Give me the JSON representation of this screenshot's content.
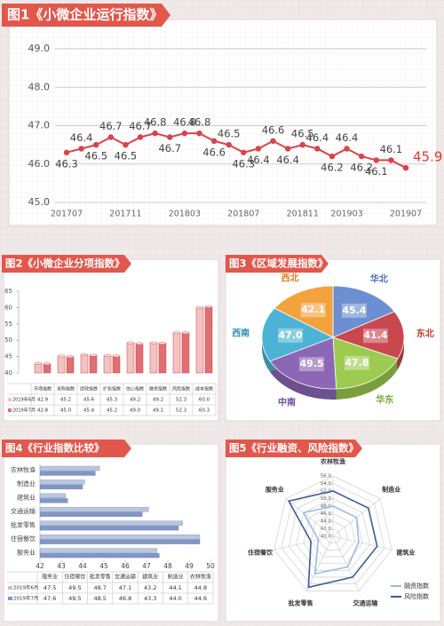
{
  "chart_data": [
    {
      "type": "line",
      "title": "图1《小微企业运行指数》",
      "categories": [
        "201707",
        null,
        null,
        null,
        "201711",
        null,
        null,
        null,
        "201803",
        null,
        null,
        null,
        "201807",
        null,
        null,
        null,
        "201811",
        null,
        null,
        "201903",
        null,
        null,
        null,
        "201907"
      ],
      "values": [
        46.3,
        46.4,
        46.5,
        46.7,
        46.5,
        46.7,
        46.8,
        46.7,
        46.8,
        46.8,
        46.6,
        46.5,
        46.3,
        46.4,
        46.6,
        46.4,
        46.5,
        46.4,
        46.2,
        46.4,
        46.2,
        46.1,
        46.1,
        45.9
      ],
      "ylim": [
        45,
        49
      ],
      "yticks": [
        {
          "value": 45,
          "label": "45.0"
        },
        {
          "value": 46,
          "label": "46.0"
        },
        {
          "value": 47,
          "label": "47.0"
        },
        {
          "value": 48,
          "label": "48.0"
        },
        {
          "value": 49,
          "label": "49.0"
        }
      ],
      "color": "#d9434a",
      "label_color": "#444444",
      "last_label_color": "#e23a2e",
      "grid": true
    },
    {
      "type": "bar",
      "title": "图2《小微企业分项指数》",
      "categories": [
        "市场指数",
        "采购指数",
        "绩效指数",
        "扩张指数",
        "信心指数",
        "融资指数",
        "风险指数",
        "成本指数"
      ],
      "series": [
        {
          "name": "2019年6月",
          "color": "#f3c2c2",
          "values": [
            42.9,
            45.2,
            45.6,
            45.3,
            49.2,
            49.2,
            52.3,
            60.0
          ],
          "value_labels": [
            "42.9",
            "45.2",
            "45.6",
            "45.3",
            "49.2",
            "49.2",
            "52.3",
            "60.0"
          ]
        },
        {
          "name": "2019年7月",
          "color": "#df6f72",
          "values": [
            42.8,
            45.0,
            45.4,
            45.2,
            49.0,
            49.1,
            52.3,
            60.3
          ],
          "value_labels": [
            "42.8",
            "45.0",
            "45.4",
            "45.2",
            "49.0",
            "49.1",
            "52.3",
            "60.3"
          ]
        }
      ],
      "ylim": [
        40,
        65
      ],
      "yticks": [
        40,
        45,
        50,
        55,
        60,
        65
      ]
    },
    {
      "type": "pie",
      "title": "图3《区域发展指数》",
      "categories": [
        "华北",
        "东北",
        "华东",
        "中南",
        "西南",
        "西北"
      ],
      "values": [
        45.4,
        41.4,
        47.8,
        49.5,
        47.0,
        42.1
      ],
      "value_labels": [
        "45.4",
        "41.4",
        "47.8",
        "49.5",
        "47.0",
        "42.1"
      ],
      "colors": [
        "#6b8fd2",
        "#c9474f",
        "#9ccb50",
        "#8c67b6",
        "#4db3d4",
        "#f2a33e"
      ],
      "label_colors": [
        "#4b6fb5",
        "#c0392b",
        "#6fa83a",
        "#6e4c9c",
        "#2f8fb5",
        "#e07b1a"
      ]
    },
    {
      "type": "hbar",
      "title": "图4《行业指数比较》",
      "categories": [
        "服务业",
        "住宿餐饮",
        "批发零售",
        "交通运输",
        "建筑业",
        "制造业",
        "农林牧渔"
      ],
      "series": [
        {
          "name": "2019年6月",
          "color": "#b9c6e0",
          "values": [
            47.5,
            49.5,
            48.7,
            47.1,
            43.2,
            44.1,
            44.8
          ]
        },
        {
          "name": "2019年7月",
          "color": "#8196c6",
          "values": [
            47.6,
            49.5,
            48.5,
            46.8,
            43.3,
            44.0,
            44.6
          ],
          "value_labels": [
            "47.6",
            "49.5",
            "48.5",
            "46.8",
            "43.3",
            "44.0",
            "44.6"
          ]
        }
      ],
      "xlim": [
        42,
        50
      ],
      "xticks": [
        42,
        43,
        44,
        45,
        46,
        47,
        48,
        49,
        50
      ]
    },
    {
      "type": "radar",
      "title": "图5《行业融资、风险指数》",
      "categories": [
        "农林牧渔",
        "制造业",
        "建筑业",
        "交通运输",
        "批发零售",
        "住宿餐饮",
        "服务业"
      ],
      "series": [
        {
          "name": "融资指数",
          "color": "#9bbbe3",
          "values": [
            48,
            48,
            47,
            49,
            51,
            44,
            50
          ]
        },
        {
          "name": "风险指数",
          "color": "#3c5c9c",
          "values": [
            52,
            52,
            52,
            52,
            55,
            46,
            55
          ]
        }
      ],
      "ylim": [
        40,
        56
      ],
      "yticks": [
        {
          "value": 40,
          "label": "40.0"
        },
        {
          "value": 42,
          "label": "42.0"
        },
        {
          "value": 44,
          "label": "44.0"
        },
        {
          "value": 46,
          "label": "46.0"
        },
        {
          "value": 48,
          "label": "48.0"
        },
        {
          "value": 50,
          "label": "50.0"
        },
        {
          "value": 52,
          "label": "52.0"
        },
        {
          "value": 54,
          "label": "54.0"
        },
        {
          "value": 56,
          "label": "56.0"
        }
      ]
    }
  ]
}
